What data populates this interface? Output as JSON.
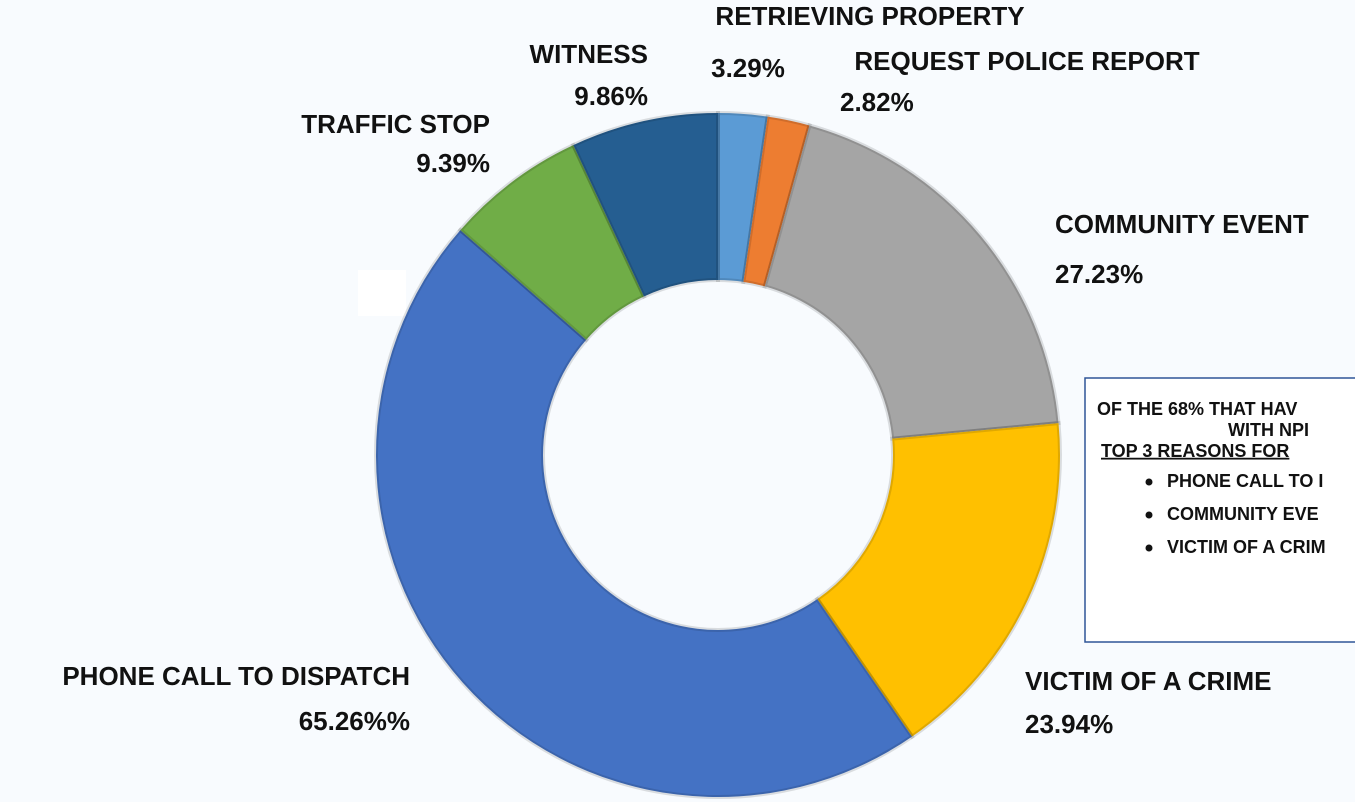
{
  "chart_data": {
    "type": "donut",
    "categories": [
      "RETRIEVING PROPERTY",
      "REQUEST POLICE REPORT",
      "COMMUNITY EVENT",
      "VICTIM OF A CRIME",
      "PHONE CALL TO DISPATCH",
      "TRAFFIC STOP",
      "WITNESS"
    ],
    "values": [
      3.29,
      2.82,
      27.23,
      23.94,
      65.26,
      9.39,
      9.86
    ],
    "value_labels": [
      "3.29%",
      "2.82%",
      "27.23%",
      "23.94%",
      "65.26%%",
      "9.39%",
      "9.86%"
    ],
    "colors": [
      "#5b9bd5",
      "#ed7d31",
      "#a5a5a5",
      "#ffc000",
      "#4472c4",
      "#70ad47",
      "#255e91"
    ]
  },
  "note_box": {
    "lines": [
      "OF THE 68% THAT HAV",
      "WITH NPI",
      "TOP 3 REASONS FOR"
    ],
    "bullets": [
      "PHONE CALL TO I",
      "COMMUNITY EVE",
      "VICTIM OF A CRIM"
    ]
  }
}
